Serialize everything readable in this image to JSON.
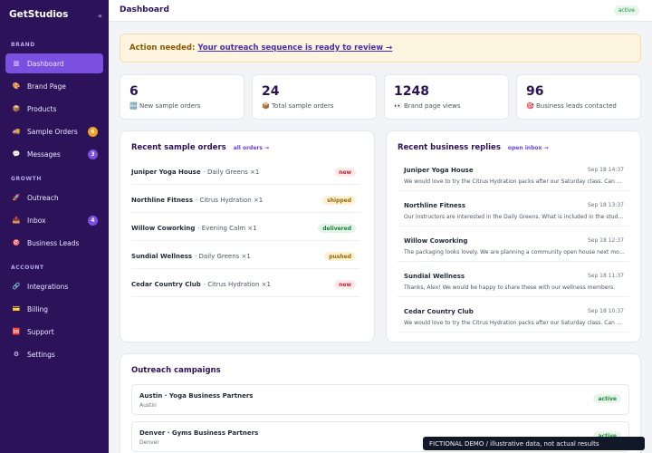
{
  "app": {
    "brand": "GetStudios",
    "collapse_icon": "«"
  },
  "sidebar": {
    "sections": [
      {
        "label": "BRAND"
      },
      {
        "label": "GROWTH"
      },
      {
        "label": "ACCOUNT"
      }
    ],
    "items": [
      {
        "label": "Dashboard",
        "icon": "chart-icon",
        "glyph": "▥",
        "active": true
      },
      {
        "label": "Brand Page",
        "icon": "palette-icon",
        "glyph": "🎨"
      },
      {
        "label": "Products",
        "icon": "box-icon",
        "glyph": "📦"
      },
      {
        "label": "Sample Orders",
        "icon": "truck-icon",
        "glyph": "🚚",
        "badge": "6",
        "badge_color": "#f0a020"
      },
      {
        "label": "Messages",
        "icon": "chat-icon",
        "glyph": "💬",
        "badge": "3",
        "badge_color": "#7b4fe0"
      },
      {
        "label": "Outreach",
        "icon": "rocket-icon",
        "glyph": "🚀"
      },
      {
        "label": "Inbox",
        "icon": "inbox-icon",
        "glyph": "📥",
        "badge": "4",
        "badge_color": "#7b4fe0"
      },
      {
        "label": "Business Leads",
        "icon": "target-icon",
        "glyph": "🎯"
      },
      {
        "label": "Integrations",
        "icon": "link-icon",
        "glyph": "🔗"
      },
      {
        "label": "Billing",
        "icon": "card-icon",
        "glyph": "💳"
      },
      {
        "label": "Support",
        "icon": "sos-icon",
        "glyph": "🆘"
      },
      {
        "label": "Settings",
        "icon": "gear-icon",
        "glyph": "⚙"
      }
    ]
  },
  "header": {
    "title": "Dashboard",
    "status": "active"
  },
  "banner": {
    "lead": "Action needed:",
    "link": "Your outreach sequence is ready to review →"
  },
  "stats": [
    {
      "value": "6",
      "label": "New sample orders",
      "icon": "new-icon",
      "glyph": "🆕"
    },
    {
      "value": "24",
      "label": "Total sample orders",
      "icon": "box-icon",
      "glyph": "📦"
    },
    {
      "value": "1248",
      "label": "Brand page views",
      "icon": "eyes-icon",
      "glyph": "👀"
    },
    {
      "value": "96",
      "label": "Business leads contacted",
      "icon": "target-icon",
      "glyph": "🎯"
    }
  ],
  "orders": {
    "title": "Recent sample orders",
    "link": "all orders →",
    "rows": [
      {
        "customer": "Juniper Yoga House",
        "product": "· Daily Greens ×1",
        "status": "new"
      },
      {
        "customer": "Northline Fitness",
        "product": "· Citrus Hydration ×1",
        "status": "shipped"
      },
      {
        "customer": "Willow Coworking",
        "product": "· Evening Calm ×1",
        "status": "delivered"
      },
      {
        "customer": "Sundial Wellness",
        "product": "· Daily Greens ×1",
        "status": "pushed"
      },
      {
        "customer": "Cedar Country Club",
        "product": "· Citrus Hydration ×1",
        "status": "new"
      }
    ]
  },
  "replies": {
    "title": "Recent business replies",
    "link": "open inbox →",
    "rows": [
      {
        "from": "Juniper Yoga House",
        "when": "Sep 18 14:37",
        "message": "We would love to try the Citrus Hydration packs after our Saturday class. Can we..."
      },
      {
        "from": "Northline Fitness",
        "when": "Sep 18 13:37",
        "message": "Our instructors are interested in the Daily Greens. What is included in the studio pack?"
      },
      {
        "from": "Willow Coworking",
        "when": "Sep 18 12:37",
        "message": "The packaging looks lovely. We are planning a community open house next month."
      },
      {
        "from": "Sundial Wellness",
        "when": "Sep 18 11:37",
        "message": "Thanks, Alex! We would be happy to share these with our wellness members."
      },
      {
        "from": "Cedar Country Club",
        "when": "Sep 18 10:37",
        "message": "We would love to try the Citrus Hydration packs after our Saturday class. Can we..."
      }
    ]
  },
  "campaigns": {
    "title": "Outreach campaigns",
    "rows": [
      {
        "name": "Austin · Yoga Business Partners",
        "city": "Austin",
        "status": "active"
      },
      {
        "name": "Denver · Gyms Business Partners",
        "city": "Denver",
        "status": "active"
      }
    ]
  },
  "footer_note": "FICTIONAL DEMO  /  illustrative data, not actual results"
}
